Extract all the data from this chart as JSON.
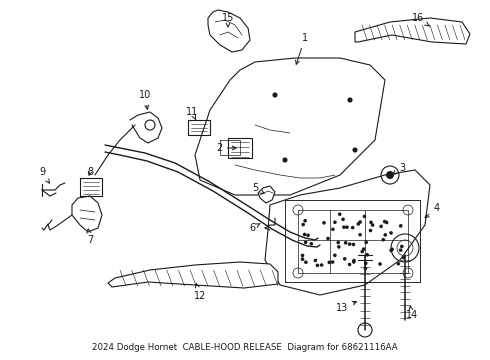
{
  "title": "2024 Dodge Hornet  CABLE-HOOD RELEASE  Diagram for 68621116AA",
  "bg_color": "#ffffff",
  "fg_color": "#1a1a1a",
  "fig_width": 4.9,
  "fig_height": 3.6,
  "dpi": 100,
  "line_color": "#1a1a1a",
  "line_width": 0.8,
  "label_fontsize": 7.0,
  "title_fontsize": 6.2
}
